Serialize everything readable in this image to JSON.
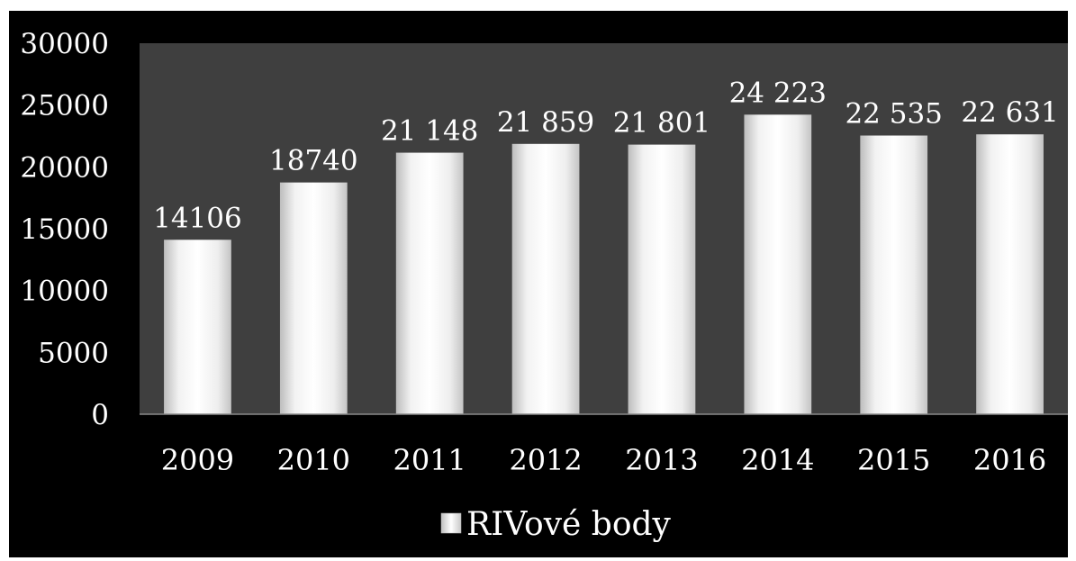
{
  "chart_data": {
    "type": "bar",
    "categories": [
      "2009",
      "2010",
      "2011",
      "2012",
      "2013",
      "2014",
      "2015",
      "2016"
    ],
    "series": [
      {
        "name": "RIVové body",
        "values": [
          14106,
          18740,
          21148,
          21859,
          21801,
          24223,
          22535,
          22631
        ],
        "labels": [
          "14106",
          "18740",
          "21 148",
          "21 859",
          "21 801",
          "24 223",
          "22 535",
          "22 631"
        ]
      }
    ],
    "yticks": [
      "0",
      "5000",
      "10000",
      "15000",
      "20000",
      "25000",
      "30000"
    ],
    "ylim": [
      0,
      30000
    ],
    "grid": false,
    "legend_position": "bottom",
    "colors": {
      "background": "#000000",
      "plot_area": "#3f3f3f",
      "bar_light": "#ffffff",
      "bar_dark": "#c9c9c9",
      "text": "#ffffff"
    }
  }
}
